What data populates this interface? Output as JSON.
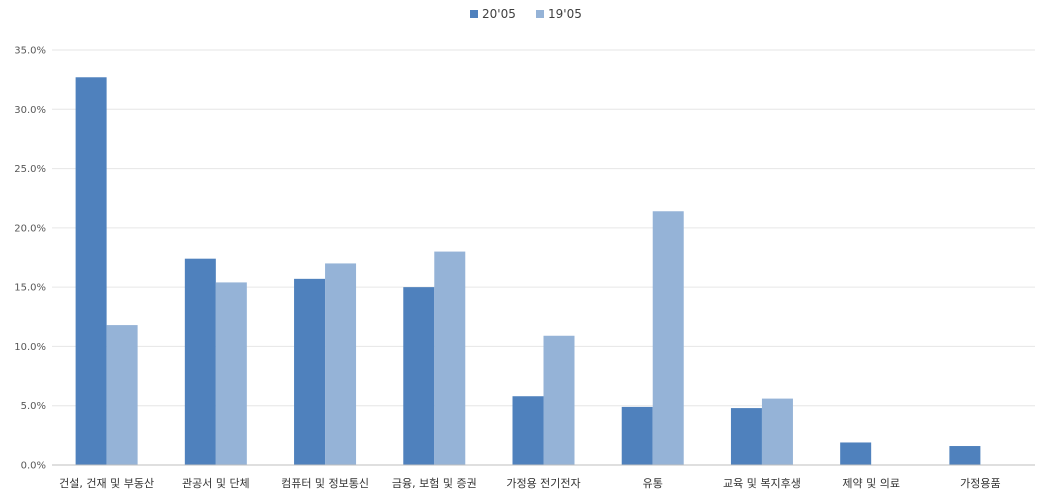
{
  "chart_data": {
    "type": "bar",
    "categories": [
      "건설, 건재 및 부동산",
      "관공서 및 단체",
      "컴퓨터 및 정보통신",
      "금융, 보험 및 증권",
      "가정용 전기전자",
      "유통",
      "교육 및 복지후생",
      "제약 및 의료",
      "가정용품"
    ],
    "series": [
      {
        "name": "20'05",
        "color": "#4f81bd",
        "values": [
          32.7,
          17.4,
          15.7,
          15.0,
          5.8,
          4.9,
          4.8,
          1.9,
          1.6
        ]
      },
      {
        "name": "19'05",
        "color": "#95b3d7",
        "values": [
          11.8,
          15.4,
          17.0,
          18.0,
          10.9,
          21.4,
          5.6,
          0,
          0
        ]
      }
    ],
    "ylim": [
      0,
      35
    ],
    "yticks": [
      "0.0%",
      "5.0%",
      "10.0%",
      "15.0%",
      "20.0%",
      "25.0%",
      "30.0%",
      "35.0%"
    ],
    "grid": true,
    "legend_position": "top-center",
    "title": "",
    "xlabel": "",
    "ylabel": ""
  }
}
